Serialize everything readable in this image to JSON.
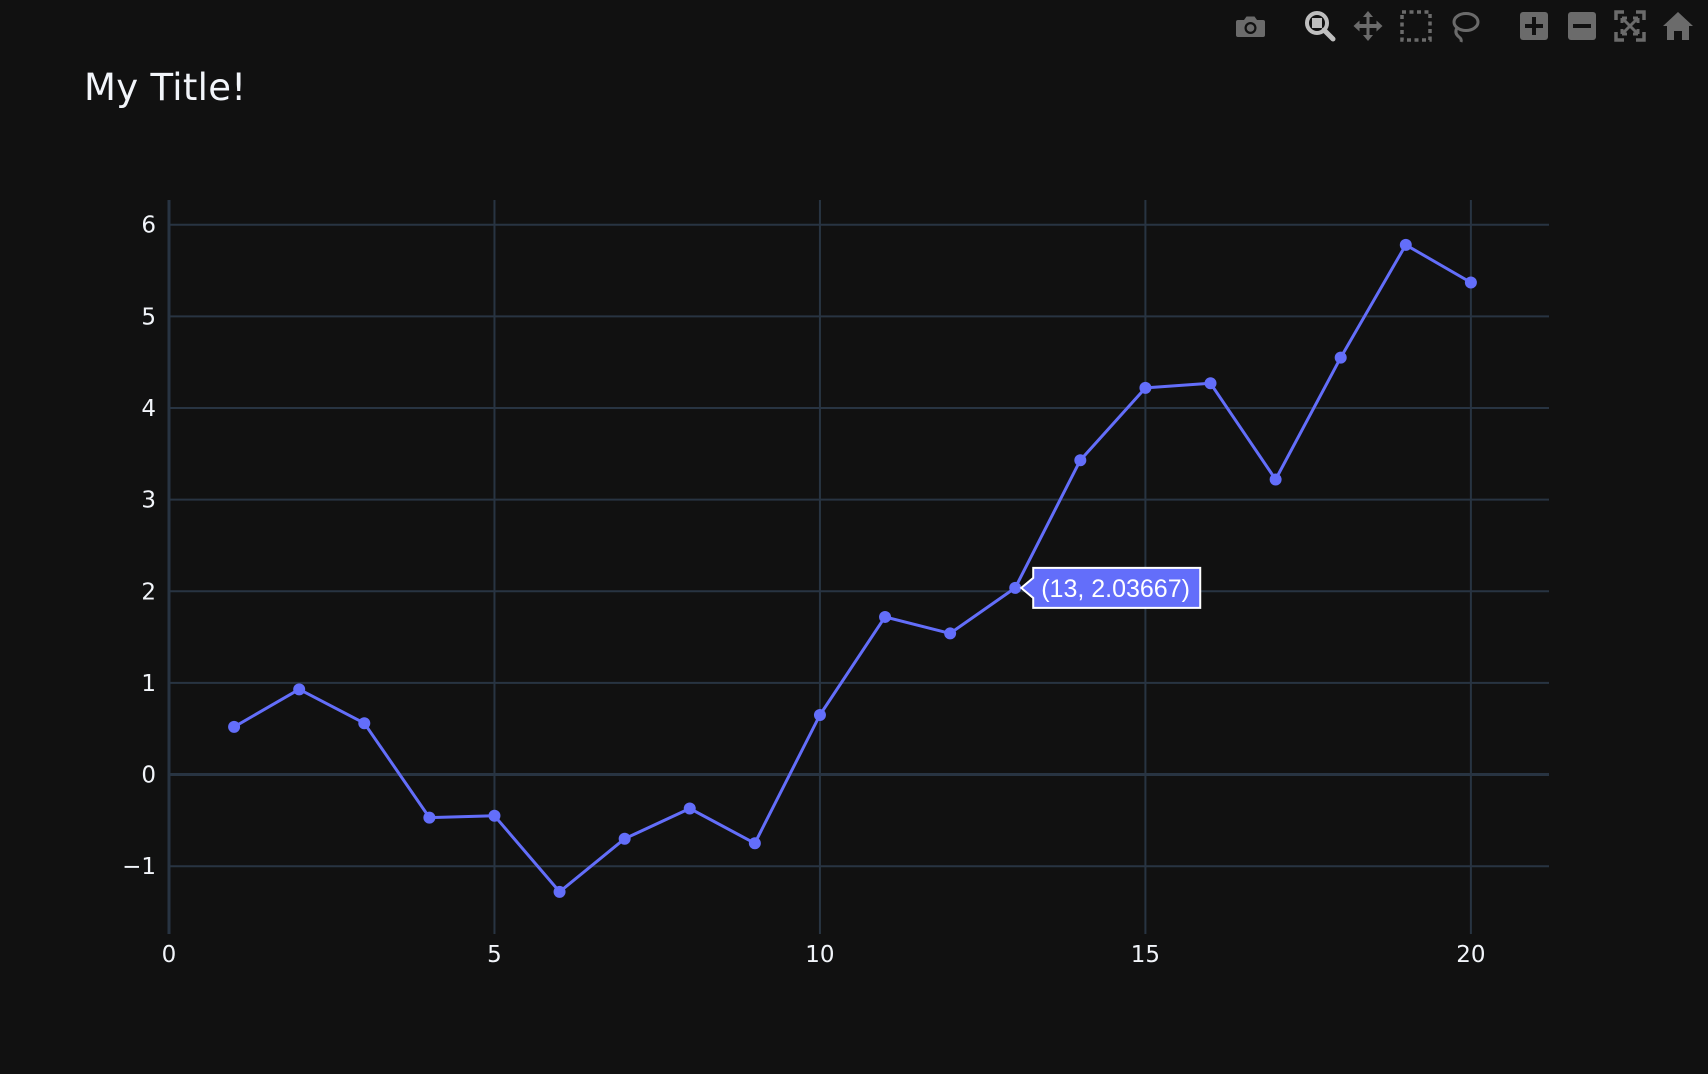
{
  "title": "My Title!",
  "colors": {
    "background": "#111111",
    "grid": "#283442",
    "zeroline": "#283442",
    "text": "#f2f5fa",
    "line": "#636efa",
    "modebar_icon": "#6b6b6b",
    "modebar_active": "#bfbfbf"
  },
  "modebar": {
    "groups": [
      [
        {
          "name": "camera-icon",
          "tooltip": "Download plot as a png"
        }
      ],
      [
        {
          "name": "zoom-icon",
          "tooltip": "Zoom",
          "active": true
        },
        {
          "name": "pan-icon",
          "tooltip": "Pan"
        },
        {
          "name": "box-select-icon",
          "tooltip": "Box Select"
        },
        {
          "name": "lasso-icon",
          "tooltip": "Lasso Select"
        }
      ],
      [
        {
          "name": "zoom-in-icon",
          "tooltip": "Zoom in"
        },
        {
          "name": "zoom-out-icon",
          "tooltip": "Zoom out"
        },
        {
          "name": "autoscale-icon",
          "tooltip": "Autoscale"
        },
        {
          "name": "home-icon",
          "tooltip": "Reset axes"
        }
      ]
    ]
  },
  "hover": {
    "index": 12,
    "label": "(13, 2.03667)"
  },
  "chart_data": {
    "type": "line",
    "mode": "lines+markers",
    "title": "My Title!",
    "xlabel": "",
    "ylabel": "",
    "x": [
      1,
      2,
      3,
      4,
      5,
      6,
      7,
      8,
      9,
      10,
      11,
      12,
      13,
      14,
      15,
      16,
      17,
      18,
      19,
      20
    ],
    "y": [
      0.52,
      0.93,
      0.56,
      -0.47,
      -0.45,
      -1.28,
      -0.7,
      -0.37,
      -0.75,
      0.65,
      1.72,
      1.54,
      2.03667,
      3.43,
      4.22,
      4.27,
      3.22,
      4.55,
      5.78,
      5.37
    ],
    "xlim": [
      0,
      21.2
    ],
    "ylim": [
      -1.74,
      6.27
    ],
    "xticks": [
      0,
      5,
      10,
      15,
      20
    ],
    "yticks": [
      -1,
      0,
      1,
      2,
      3,
      4,
      5,
      6
    ],
    "xtick_labels": [
      "0",
      "5",
      "10",
      "15",
      "20"
    ],
    "ytick_labels": [
      "−1",
      "0",
      "1",
      "2",
      "3",
      "4",
      "5",
      "6"
    ],
    "grid": true,
    "legend": "none"
  }
}
